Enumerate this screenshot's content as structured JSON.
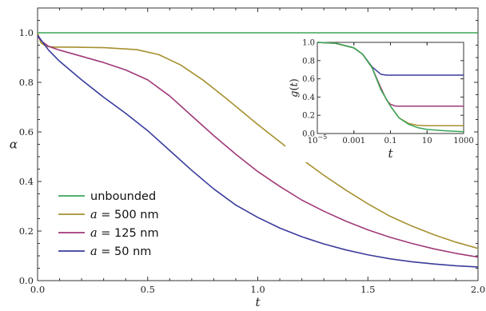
{
  "chart_data": [
    {
      "type": "line",
      "xlabel": "t",
      "ylabel": "α",
      "xlim": [
        0,
        2
      ],
      "ylim": [
        0,
        1.1
      ],
      "x_ticks": [
        "0.0",
        "0.5",
        "1.0",
        "1.5",
        "2.0"
      ],
      "y_ticks": [
        "0.0",
        "0.2",
        "0.4",
        "0.6",
        "0.8",
        "1.0"
      ],
      "grid": false,
      "legend_position": "bottom-left",
      "series": [
        {
          "name": "unbounded",
          "legend_prefix": "",
          "legend_label": "unbounded",
          "color": "#3aa557",
          "x": [
            0,
            0.5,
            1.0,
            1.5,
            2.0
          ],
          "y": [
            1.0,
            1.0,
            1.0,
            1.0,
            1.0
          ]
        },
        {
          "name": "a = 500 nm",
          "legend_prefix": "a",
          "legend_label": " = 500 nm",
          "color": "#a6902f",
          "x": [
            0,
            0.015,
            0.04,
            0.08,
            0.15,
            0.3,
            0.45,
            0.55,
            0.65,
            0.75,
            0.85,
            1.0,
            1.1,
            1.2,
            1.3,
            1.4,
            1.5,
            1.6,
            1.7,
            1.8,
            1.9,
            2.0
          ],
          "y": [
            1.0,
            0.96,
            0.945,
            0.942,
            0.942,
            0.94,
            0.932,
            0.912,
            0.87,
            0.81,
            0.74,
            0.63,
            0.56,
            0.49,
            0.425,
            0.365,
            0.31,
            0.26,
            0.22,
            0.185,
            0.155,
            0.13
          ]
        },
        {
          "name": "a = 125 nm",
          "legend_prefix": "a",
          "legend_label": " = 125 nm",
          "color": "#a03a78",
          "x": [
            0,
            0.02,
            0.05,
            0.1,
            0.2,
            0.3,
            0.4,
            0.5,
            0.6,
            0.7,
            0.8,
            0.9,
            1.0,
            1.1,
            1.2,
            1.3,
            1.4,
            1.5,
            1.6,
            1.7,
            1.8,
            1.9,
            2.0
          ],
          "y": [
            0.985,
            0.965,
            0.945,
            0.93,
            0.905,
            0.88,
            0.85,
            0.81,
            0.745,
            0.665,
            0.585,
            0.51,
            0.44,
            0.38,
            0.325,
            0.28,
            0.24,
            0.205,
            0.175,
            0.15,
            0.128,
            0.11,
            0.095
          ]
        },
        {
          "name": "a = 50 nm",
          "legend_prefix": "a",
          "legend_label": " = 50 nm",
          "color": "#3a3c9c",
          "x": [
            0,
            0.05,
            0.1,
            0.2,
            0.3,
            0.4,
            0.5,
            0.6,
            0.7,
            0.8,
            0.9,
            1.0,
            1.1,
            1.2,
            1.3,
            1.4,
            1.5,
            1.6,
            1.7,
            1.8,
            1.9,
            2.0
          ],
          "y": [
            0.99,
            0.93,
            0.885,
            0.81,
            0.74,
            0.675,
            0.605,
            0.525,
            0.445,
            0.37,
            0.305,
            0.255,
            0.212,
            0.177,
            0.148,
            0.124,
            0.104,
            0.088,
            0.076,
            0.067,
            0.06,
            0.055
          ]
        }
      ]
    },
    {
      "type": "line",
      "xlabel": "t",
      "ylabel_italic": "g",
      "ylabel_rest": "(",
      "ylabel_var": "t",
      "ylabel_close": ")",
      "x_scale": "log",
      "xlim": [
        1e-05,
        1000
      ],
      "ylim": [
        0,
        1
      ],
      "x_ticks": [
        {
          "base": "10",
          "exp": "−5"
        },
        {
          "base": "0.001",
          "exp": ""
        },
        {
          "base": "0.1",
          "exp": ""
        },
        {
          "base": "10",
          "exp": ""
        },
        {
          "base": "1000",
          "exp": ""
        }
      ],
      "y_ticks": [
        "0.0",
        "0.2",
        "0.4",
        "0.6",
        "0.8",
        "1.0"
      ],
      "grid": false,
      "series": [
        {
          "name": "a = 50 nm",
          "color": "#3a3c9c",
          "x": [
            1e-05,
            0.0001,
            0.001,
            0.003,
            0.01,
            0.03,
            0.06,
            0.1,
            1,
            10,
            1000
          ],
          "y": [
            1.0,
            0.99,
            0.94,
            0.87,
            0.73,
            0.65,
            0.64,
            0.64,
            0.64,
            0.64,
            0.64
          ]
        },
        {
          "name": "a = 125 nm",
          "color": "#a03a78",
          "x": [
            1e-05,
            0.0001,
            0.001,
            0.003,
            0.01,
            0.03,
            0.06,
            0.1,
            0.2,
            0.5,
            1,
            10,
            1000
          ],
          "y": [
            1.0,
            0.99,
            0.94,
            0.87,
            0.72,
            0.5,
            0.37,
            0.32,
            0.3,
            0.3,
            0.3,
            0.3,
            0.3
          ]
        },
        {
          "name": "a = 500 nm",
          "color": "#a6902f",
          "x": [
            1e-05,
            0.0001,
            0.001,
            0.003,
            0.01,
            0.03,
            0.1,
            0.3,
            1,
            3,
            10,
            100,
            1000
          ],
          "y": [
            1.0,
            0.99,
            0.94,
            0.87,
            0.72,
            0.48,
            0.3,
            0.17,
            0.11,
            0.09,
            0.085,
            0.085,
            0.085
          ]
        },
        {
          "name": "unbounded",
          "color": "#3aa557",
          "x": [
            1e-05,
            0.0001,
            0.001,
            0.003,
            0.01,
            0.03,
            0.1,
            0.3,
            1,
            3,
            10,
            100,
            1000
          ],
          "y": [
            1.0,
            0.99,
            0.94,
            0.87,
            0.72,
            0.48,
            0.3,
            0.17,
            0.1,
            0.065,
            0.045,
            0.03,
            0.02
          ]
        }
      ]
    }
  ]
}
